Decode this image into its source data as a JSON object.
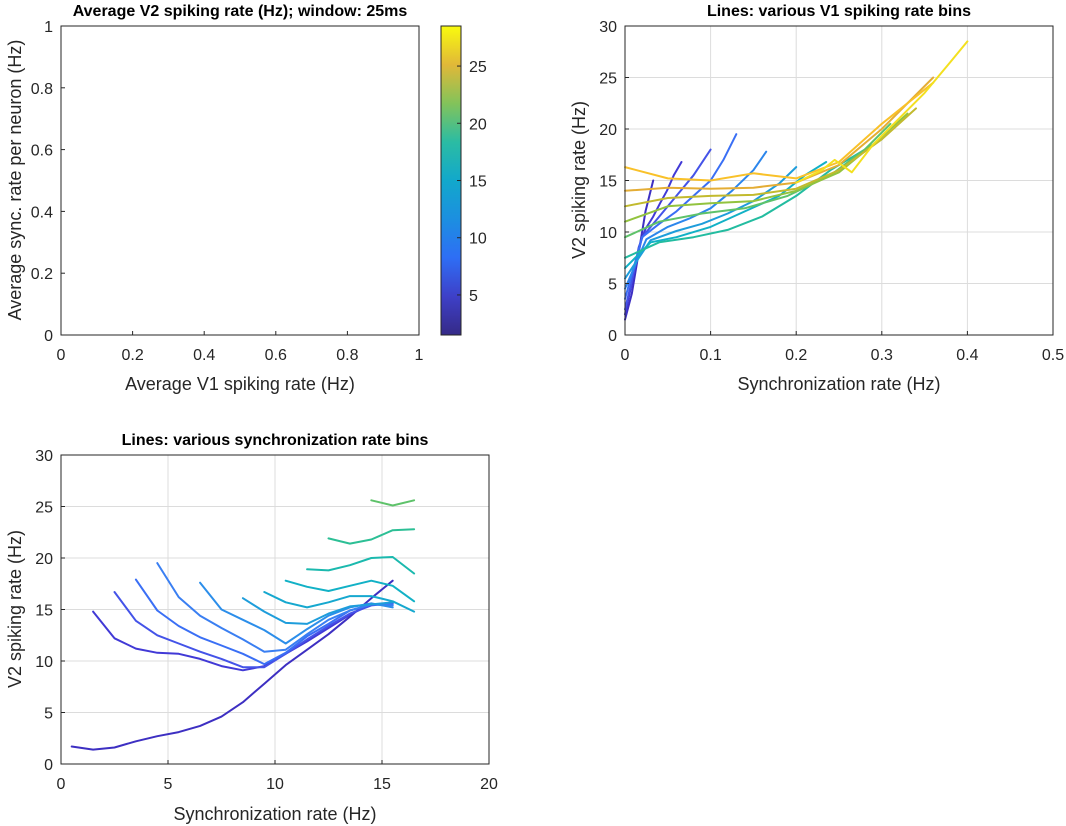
{
  "chart_data": [
    {
      "type": "heatmap",
      "title": "Average V2 spiking rate (Hz); window: 25ms",
      "xlabel": "Average V1 spiking rate (Hz)",
      "ylabel": "Average sync. rate per neuron (Hz)",
      "xlim": [
        0,
        1
      ],
      "ylim": [
        0,
        1
      ],
      "xticks": [
        "0",
        "0.2",
        "0.4",
        "0.6",
        "0.8",
        "1"
      ],
      "yticks": [
        "0",
        "0.2",
        "0.4",
        "0.6",
        "0.8",
        "1"
      ],
      "grid": false,
      "colorbar": {
        "colormap": "parula",
        "range": [
          1.5,
          28.5
        ],
        "ticks": [
          "5",
          "10",
          "15",
          "20",
          "25"
        ]
      },
      "values": []
    },
    {
      "type": "line",
      "title": "Lines: various V1 spiking rate bins",
      "xlabel": "Synchronization rate (Hz)",
      "ylabel": "V2 spiking rate (Hz)",
      "xlim": [
        0,
        0.5
      ],
      "ylim": [
        0,
        30
      ],
      "xticks": [
        "0",
        "0.1",
        "0.2",
        "0.3",
        "0.4",
        "0.5"
      ],
      "yticks": [
        "0",
        "5",
        "10",
        "15",
        "20",
        "25",
        "30"
      ],
      "grid": true,
      "colormap": "parula",
      "series": [
        {
          "color": "#3d2fc2",
          "x": [
            0,
            0.008,
            0.016,
            0.024,
            0.033
          ],
          "y": [
            1.5,
            4,
            8,
            12,
            15
          ]
        },
        {
          "color": "#4139d6",
          "x": [
            0,
            0.008,
            0.016,
            0.024,
            0.033,
            0.041,
            0.049,
            0.057,
            0.066
          ],
          "y": [
            2,
            5,
            8.5,
            10.3,
            11.5,
            12.8,
            14,
            15.5,
            16.8
          ]
        },
        {
          "color": "#4453e8",
          "x": [
            0,
            0.02,
            0.04,
            0.06,
            0.08,
            0.1
          ],
          "y": [
            2.5,
            9.5,
            11.5,
            13.5,
            15.5,
            18
          ]
        },
        {
          "color": "#3a6ff5",
          "x": [
            0,
            0.02,
            0.04,
            0.06,
            0.08,
            0.1,
            0.115,
            0.13
          ],
          "y": [
            3.5,
            9.5,
            10.8,
            12,
            13.5,
            15,
            17,
            19.5
          ]
        },
        {
          "color": "#2c86ec",
          "x": [
            0,
            0.025,
            0.05,
            0.075,
            0.1,
            0.125,
            0.15,
            0.165
          ],
          "y": [
            4.5,
            9.3,
            10.5,
            11.3,
            12.3,
            14,
            16,
            17.8
          ]
        },
        {
          "color": "#1e9ddb",
          "x": [
            0,
            0.03,
            0.06,
            0.09,
            0.12,
            0.15,
            0.18,
            0.2
          ],
          "y": [
            5.5,
            9.2,
            10.1,
            10.8,
            11.8,
            13,
            14.7,
            16.3
          ]
        },
        {
          "color": "#12b1c6",
          "x": [
            0,
            0.03,
            0.06,
            0.1,
            0.14,
            0.18,
            0.21,
            0.235
          ],
          "y": [
            6.5,
            9,
            9.5,
            10.5,
            12,
            13.5,
            15.5,
            16.8
          ]
        },
        {
          "color": "#23bca0",
          "x": [
            0,
            0.04,
            0.08,
            0.12,
            0.16,
            0.2,
            0.24,
            0.27,
            0.3
          ],
          "y": [
            7.5,
            9,
            9.5,
            10.2,
            11.5,
            13.5,
            16,
            17.5,
            19
          ]
        },
        {
          "color": "#5ec26a",
          "x": [
            0,
            0.04,
            0.09,
            0.14,
            0.19,
            0.24,
            0.28,
            0.31
          ],
          "y": [
            9.5,
            11,
            11.8,
            12.3,
            13.5,
            15.5,
            18,
            20.5
          ]
        },
        {
          "color": "#92c33e",
          "x": [
            0,
            0.05,
            0.1,
            0.15,
            0.2,
            0.25,
            0.29,
            0.33
          ],
          "y": [
            11,
            12.5,
            12.8,
            13,
            14,
            15.8,
            18.5,
            21.5
          ]
        },
        {
          "color": "#c2ba2e",
          "x": [
            0,
            0.05,
            0.1,
            0.15,
            0.2,
            0.25,
            0.3,
            0.34
          ],
          "y": [
            12.5,
            13.3,
            13.5,
            13.6,
            14.2,
            16,
            19,
            22
          ]
        },
        {
          "color": "#e4ad35",
          "x": [
            0,
            0.05,
            0.1,
            0.15,
            0.2,
            0.25,
            0.3,
            0.36
          ],
          "y": [
            14,
            14.3,
            14.2,
            14.3,
            14.8,
            16.5,
            20,
            25
          ]
        },
        {
          "color": "#f9c129",
          "x": [
            0,
            0.05,
            0.1,
            0.15,
            0.2,
            0.25,
            0.3,
            0.36
          ],
          "y": [
            16.3,
            15.2,
            15,
            15.7,
            15.2,
            16.8,
            20.5,
            24.5
          ]
        },
        {
          "color": "#f3e01f",
          "x": [
            0.2,
            0.23,
            0.245,
            0.265,
            0.29,
            0.32,
            0.35,
            0.38,
            0.4
          ],
          "y": [
            14.8,
            16,
            17,
            15.8,
            18.5,
            21,
            23.5,
            26.5,
            28.5
          ]
        }
      ]
    },
    {
      "type": "line",
      "title": "Lines: various synchronization rate bins",
      "xlabel": "Synchronization rate (Hz)",
      "ylabel": "V2 spiking rate (Hz)",
      "xlim": [
        0,
        20
      ],
      "ylim": [
        0,
        30
      ],
      "xticks": [
        "0",
        "5",
        "10",
        "15",
        "20"
      ],
      "yticks": [
        "0",
        "5",
        "10",
        "15",
        "20",
        "25",
        "30"
      ],
      "grid": true,
      "colormap": "parula",
      "series": [
        {
          "color": "#3d2fc2",
          "x": [
            0.5,
            1.5,
            2.5,
            3.5,
            4.5,
            5.5,
            6.5,
            7.5,
            8.5,
            9.5,
            10.5,
            11.5,
            12.5,
            13.5,
            14.5,
            15.5
          ],
          "y": [
            1.7,
            1.4,
            1.6,
            2.2,
            2.7,
            3.1,
            3.7,
            4.6,
            6,
            7.8,
            9.6,
            11.1,
            12.6,
            14.3,
            16.1,
            17.8
          ]
        },
        {
          "color": "#4139d6",
          "x": [
            1.5,
            2.5,
            3.5,
            4.5,
            5.5,
            6.5,
            7.5,
            8.5,
            9.5,
            10.5,
            11.5,
            12.5,
            13.5,
            14.5,
            15.5
          ],
          "y": [
            14.8,
            12.2,
            11.2,
            10.8,
            10.7,
            10.2,
            9.5,
            9.1,
            9.5,
            10.7,
            11.9,
            13.2,
            14.5,
            15.5,
            15.6
          ]
        },
        {
          "color": "#4453e8",
          "x": [
            2.5,
            3.5,
            4.5,
            5.5,
            6.5,
            7.5,
            8.5,
            9.5,
            10.5,
            11.5,
            12.5,
            13.5,
            14.5,
            15.5
          ],
          "y": [
            16.7,
            13.9,
            12.5,
            11.7,
            10.9,
            10.2,
            9.4,
            9.4,
            10.7,
            12.1,
            13.4,
            14.6,
            15.4,
            15.6
          ]
        },
        {
          "color": "#3a6ff5",
          "x": [
            3.5,
            4.5,
            5.5,
            6.5,
            7.5,
            8.5,
            9.5,
            10.5,
            11.5,
            12.5,
            13.5,
            14.5,
            15.5
          ],
          "y": [
            17.9,
            14.9,
            13.4,
            12.3,
            11.5,
            10.7,
            9.7,
            10.8,
            12.4,
            13.6,
            14.9,
            15.5,
            15.5
          ]
        },
        {
          "color": "#3a7ff2",
          "x": [
            4.5,
            5.5,
            6.5,
            7.5,
            8.5,
            9.5,
            10.5,
            11.5,
            12.5,
            13.5,
            14.5,
            15.5
          ],
          "y": [
            19.5,
            16.2,
            14.4,
            13.2,
            12.1,
            10.9,
            11.1,
            12.6,
            14,
            14.9,
            15.5,
            15.4
          ]
        },
        {
          "color": "#2c8eea",
          "x": [
            6.5,
            7.5,
            8.5,
            9.5,
            10.5,
            11.5,
            12.5,
            13.5,
            14.5,
            15.5
          ],
          "y": [
            17.6,
            15,
            14,
            13,
            11.7,
            13.1,
            14.4,
            15.2,
            15.6,
            15.2
          ]
        },
        {
          "color": "#1e9ddb",
          "x": [
            8.5,
            9.5,
            10.5,
            11.5,
            12.5,
            13.5,
            14.5,
            15.5
          ],
          "y": [
            16.1,
            14.8,
            13.7,
            13.6,
            14.6,
            15.3,
            15.5,
            15.7
          ]
        },
        {
          "color": "#16a8cf",
          "x": [
            9.5,
            10.5,
            11.5,
            12.5,
            13.5,
            14.5,
            15.5,
            16.5
          ],
          "y": [
            16.7,
            15.7,
            15.2,
            15.7,
            16.3,
            16.3,
            15.8,
            14.8
          ]
        },
        {
          "color": "#12b1c6",
          "x": [
            10.5,
            11.5,
            12.5,
            13.5,
            14.5,
            15.5,
            16.5
          ],
          "y": [
            17.8,
            17.2,
            16.8,
            17.3,
            17.8,
            17.3,
            15.8
          ]
        },
        {
          "color": "#1bb9ae",
          "x": [
            11.5,
            12.5,
            13.5,
            14.5,
            15.5,
            16.5
          ],
          "y": [
            18.9,
            18.8,
            19.3,
            20,
            20.1,
            18.5
          ]
        },
        {
          "color": "#2cbf95",
          "x": [
            12.5,
            13.5,
            14.5,
            15.5,
            16.5
          ],
          "y": [
            21.9,
            21.4,
            21.8,
            22.7,
            22.8
          ]
        },
        {
          "color": "#5ec26a",
          "x": [
            14.5,
            15.5,
            16.5
          ],
          "y": [
            25.6,
            25.1,
            25.6
          ]
        }
      ]
    }
  ]
}
